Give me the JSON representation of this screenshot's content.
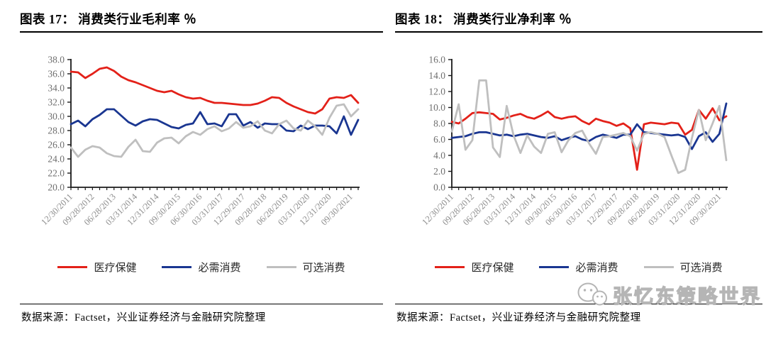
{
  "panels": [
    {
      "title": "图表 17： 消费类行业毛利率 ％",
      "source_note": "数据来源：Factset，兴业证券经济与金融研究院整理"
    },
    {
      "title": "图表 18： 消费类行业净利率 ％",
      "source_note": "数据来源：Factset，兴业证券经济与金融研究院整理"
    }
  ],
  "legend": {
    "position": "bottom",
    "items": [
      {
        "label": "医疗保健",
        "color": "#e32119"
      },
      {
        "label": "必需消费",
        "color": "#1a3691"
      },
      {
        "label": "可选消费",
        "color": "#bfbfbf"
      }
    ]
  },
  "watermark": {
    "icon": "wechat-icon",
    "text": "张忆东策略世界"
  },
  "style_colors": {
    "axis": "#1a1a1a",
    "y_tick_label": "#6e6e6e",
    "x_tick_label": "#8c8c8c"
  },
  "chart_data": [
    {
      "type": "line",
      "title": "图表 17: 消费类行业毛利率 %",
      "xlabel": "",
      "ylabel": "",
      "grid": false,
      "legend_position": "bottom",
      "ylim": [
        20.0,
        38.0
      ],
      "ytick_step": 2.0,
      "n_points": 41,
      "x_tick_every": 3,
      "x_tick_labels": [
        "12/30/2011",
        "09/28/2012",
        "06/28/2013",
        "03/31/2014",
        "12/31/2014",
        "09/30/2015",
        "06/30/2016",
        "03/31/2017",
        "12/29/2017",
        "09/28/2018",
        "06/28/2019",
        "03/31/2020",
        "12/31/2020",
        "09/30/2021"
      ],
      "series": [
        {
          "name": "医疗保健",
          "key": "healthcare-line",
          "color": "#e32119",
          "values": [
            36.3,
            36.2,
            35.4,
            36.0,
            36.7,
            36.9,
            36.4,
            35.6,
            35.1,
            34.8,
            34.4,
            34.0,
            33.6,
            33.4,
            33.6,
            33.1,
            32.7,
            32.5,
            32.6,
            32.2,
            31.9,
            31.9,
            31.8,
            31.7,
            31.6,
            31.6,
            31.8,
            32.2,
            32.7,
            32.6,
            31.9,
            31.4,
            31.0,
            30.6,
            30.4,
            31.0,
            32.5,
            32.7,
            32.6,
            33.0,
            31.9
          ]
        },
        {
          "name": "必需消费",
          "key": "staples-line",
          "color": "#1a3691",
          "values": [
            28.9,
            29.4,
            28.6,
            29.6,
            30.2,
            31.0,
            31.0,
            30.1,
            29.2,
            28.7,
            29.3,
            29.6,
            29.5,
            29.0,
            28.5,
            28.3,
            28.8,
            29.0,
            30.6,
            28.9,
            29.0,
            28.6,
            30.3,
            30.3,
            28.7,
            29.2,
            28.4,
            29.0,
            28.9,
            28.9,
            28.0,
            27.9,
            28.7,
            28.2,
            28.7,
            28.7,
            28.6,
            27.6,
            30.0,
            27.4,
            29.5
          ]
        },
        {
          "name": "可选消费",
          "key": "discretionary-line",
          "color": "#bfbfbf",
          "values": [
            25.6,
            24.3,
            25.3,
            25.8,
            25.6,
            24.8,
            24.4,
            24.3,
            25.7,
            26.7,
            25.1,
            25.0,
            26.3,
            26.9,
            27.0,
            26.2,
            27.2,
            27.8,
            27.4,
            28.2,
            28.6,
            27.9,
            28.3,
            29.2,
            28.4,
            28.6,
            29.3,
            28.0,
            27.6,
            28.9,
            29.4,
            28.3,
            28.0,
            29.4,
            28.6,
            27.4,
            29.8,
            31.5,
            31.7,
            30.0,
            31.0
          ]
        }
      ]
    },
    {
      "type": "line",
      "title": "图表 18: 消费类行业净利率 %",
      "xlabel": "",
      "ylabel": "",
      "grid": false,
      "legend_position": "bottom",
      "ylim": [
        0.0,
        16.0
      ],
      "ytick_step": 2.0,
      "n_points": 41,
      "x_tick_every": 3,
      "x_tick_labels": [
        "12/30/2011",
        "09/28/2012",
        "06/28/2013",
        "03/31/2014",
        "12/31/2014",
        "09/30/2015",
        "06/30/2016",
        "03/31/2017",
        "12/29/2017",
        "09/28/2018",
        "06/28/2019",
        "03/31/2020",
        "12/31/2020",
        "09/30/2021"
      ],
      "series": [
        {
          "name": "医疗保健",
          "key": "healthcare-line",
          "color": "#e32119",
          "values": [
            8.2,
            8.0,
            8.6,
            9.3,
            9.4,
            9.3,
            9.2,
            8.5,
            8.7,
            9.0,
            9.2,
            8.8,
            8.6,
            9.0,
            9.5,
            8.8,
            8.6,
            8.8,
            8.9,
            8.3,
            7.9,
            8.6,
            8.3,
            8.1,
            7.7,
            8.0,
            7.4,
            2.2,
            7.9,
            8.1,
            8.0,
            7.9,
            8.1,
            8.0,
            6.6,
            7.2,
            9.7,
            8.6,
            9.9,
            8.4,
            8.9
          ]
        },
        {
          "name": "必需消费",
          "key": "staples-line",
          "color": "#1a3691",
          "values": [
            6.2,
            6.3,
            6.4,
            6.7,
            6.9,
            6.9,
            6.7,
            6.5,
            6.6,
            6.4,
            6.6,
            6.7,
            6.5,
            6.3,
            6.2,
            6.4,
            5.9,
            6.2,
            6.4,
            6.0,
            5.8,
            6.3,
            6.6,
            6.4,
            6.2,
            6.6,
            6.6,
            7.9,
            6.9,
            6.8,
            6.7,
            6.6,
            6.5,
            6.6,
            6.3,
            4.8,
            6.4,
            6.9,
            5.7,
            6.7,
            10.5
          ]
        },
        {
          "name": "可选消费",
          "key": "discretionary-line",
          "color": "#bfbfbf",
          "values": [
            7.0,
            10.4,
            4.7,
            5.9,
            13.4,
            13.4,
            5.0,
            3.8,
            10.2,
            6.5,
            4.3,
            6.5,
            5.1,
            4.3,
            6.7,
            6.9,
            4.4,
            5.9,
            6.8,
            7.1,
            5.5,
            4.2,
            6.3,
            6.4,
            6.6,
            6.8,
            6.4,
            4.6,
            6.7,
            6.9,
            6.7,
            6.3,
            4.0,
            1.8,
            2.2,
            6.2,
            9.7,
            5.9,
            8.0,
            10.2,
            3.4
          ]
        }
      ]
    }
  ]
}
